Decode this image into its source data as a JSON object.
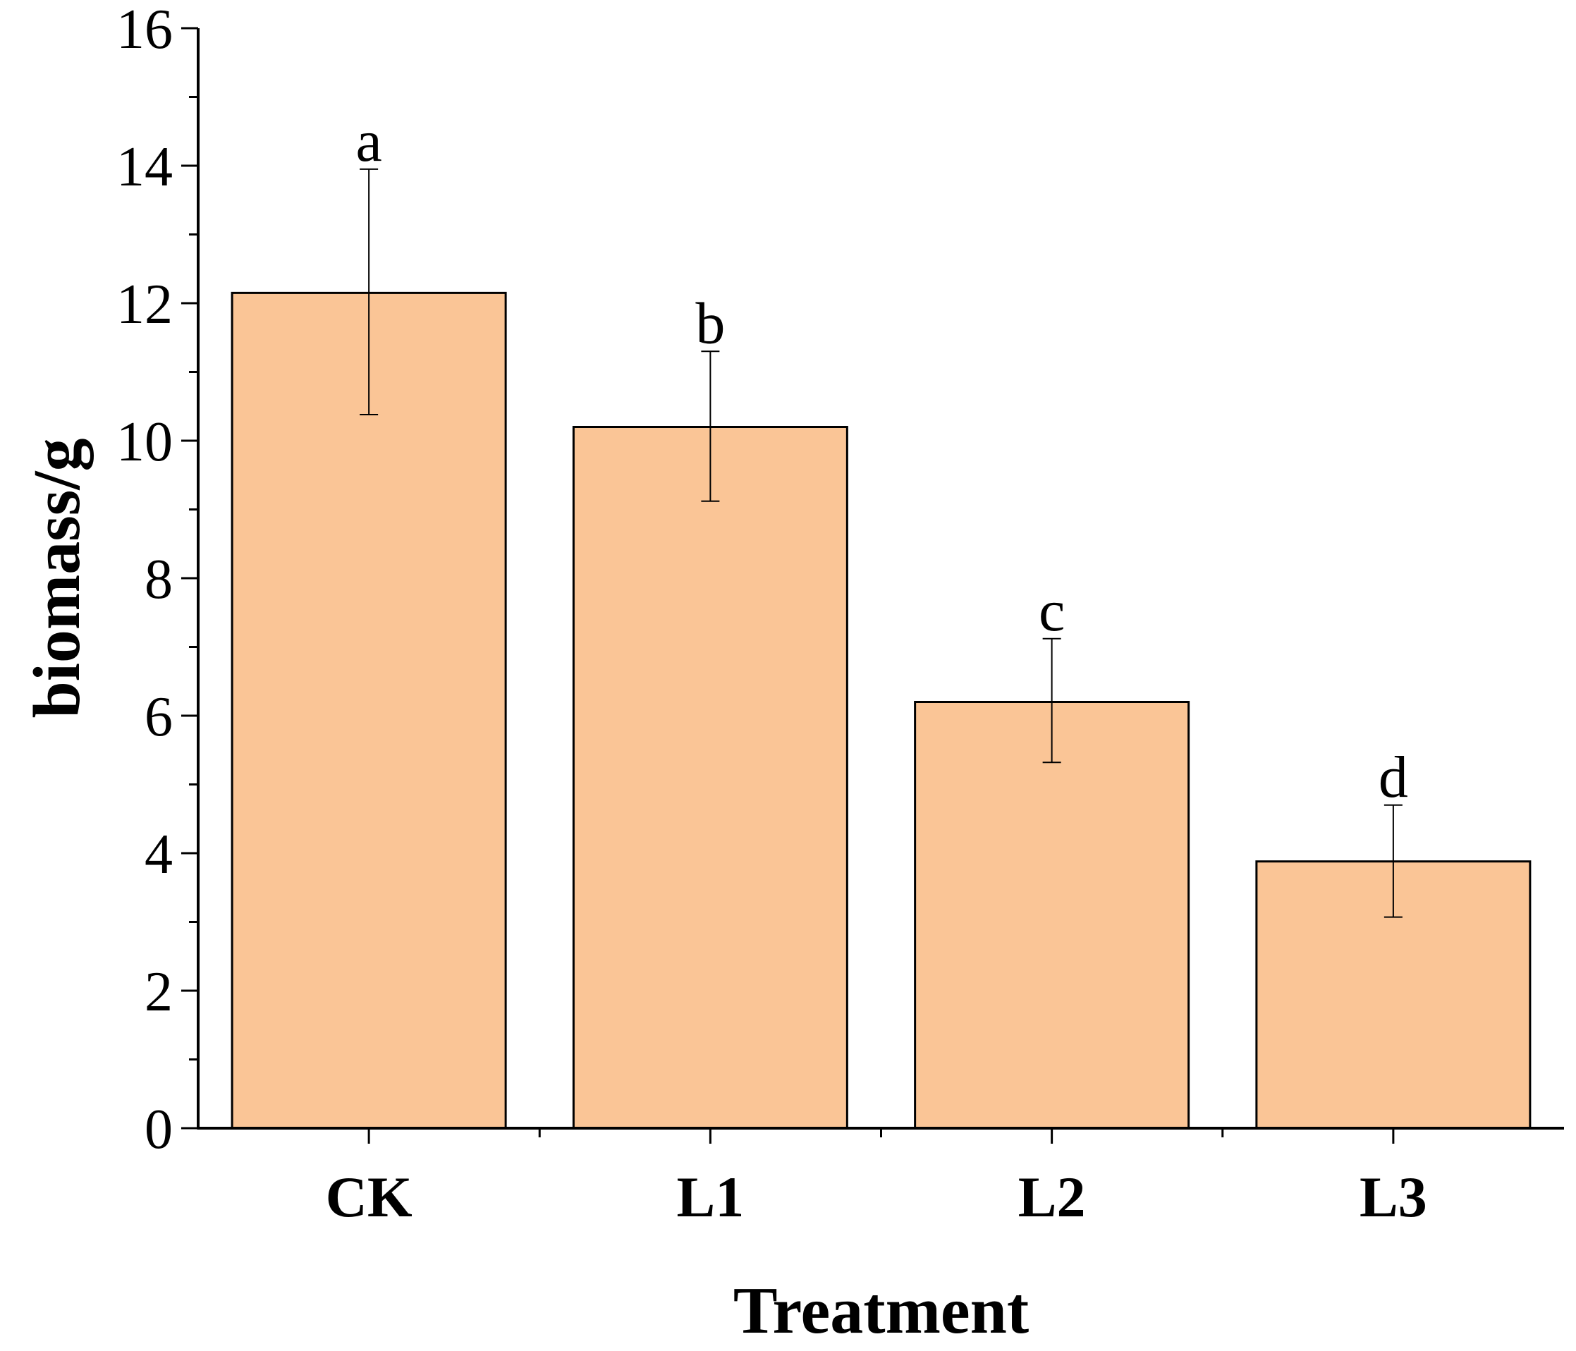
{
  "chart_data": {
    "type": "bar",
    "title": "",
    "xlabel": "Treatment",
    "ylabel": "biomass/g",
    "categories": [
      "CK",
      "L1",
      "L2",
      "L3"
    ],
    "values": [
      12.15,
      10.2,
      6.2,
      3.88
    ],
    "error_low": [
      10.38,
      9.12,
      5.32,
      3.07
    ],
    "error_high": [
      13.95,
      11.3,
      7.12,
      4.7
    ],
    "significance_labels": [
      "a",
      "b",
      "c",
      "d"
    ],
    "ylim": [
      0,
      16
    ],
    "yticks": [
      "0",
      "2",
      "4",
      "6",
      "8",
      "10",
      "12",
      "14",
      "16"
    ],
    "ytick_values": [
      0,
      2,
      4,
      6,
      8,
      10,
      12,
      14,
      16
    ],
    "grid": false,
    "legend": "none",
    "bar_color": "#FAC596",
    "edge_color": "#000000"
  }
}
